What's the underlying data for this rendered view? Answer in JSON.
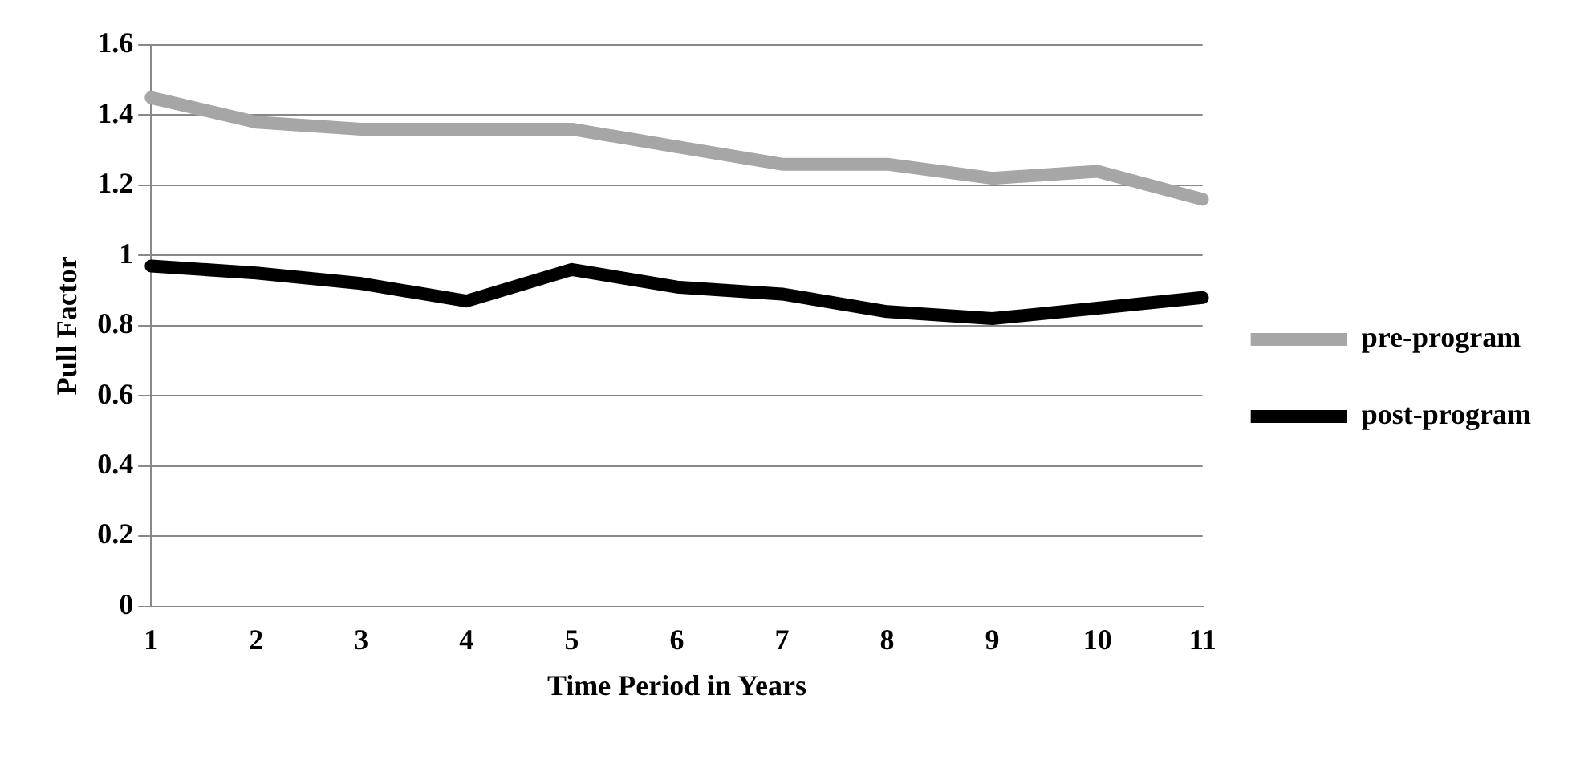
{
  "chart_data": {
    "type": "line",
    "xlabel": "Time Period in Years",
    "ylabel": "Pull Factor",
    "categories": [
      "1",
      "2",
      "3",
      "4",
      "5",
      "6",
      "7",
      "8",
      "9",
      "10",
      "11"
    ],
    "series": [
      {
        "name": "pre-program",
        "color": "#a6a6a6",
        "values": [
          1.45,
          1.38,
          1.36,
          1.36,
          1.36,
          1.31,
          1.26,
          1.26,
          1.22,
          1.24,
          1.16
        ]
      },
      {
        "name": "post-program",
        "color": "#000000",
        "values": [
          0.97,
          0.95,
          0.92,
          0.87,
          0.96,
          0.91,
          0.89,
          0.84,
          0.82,
          0.85,
          0.88
        ]
      }
    ],
    "ylim": [
      0,
      1.6
    ],
    "yticks": [
      0,
      0.2,
      0.4,
      0.6,
      0.8,
      1,
      1.2,
      1.4,
      1.6
    ],
    "grid": "y",
    "legend": "right",
    "marker": "none",
    "line_style": "solid"
  }
}
